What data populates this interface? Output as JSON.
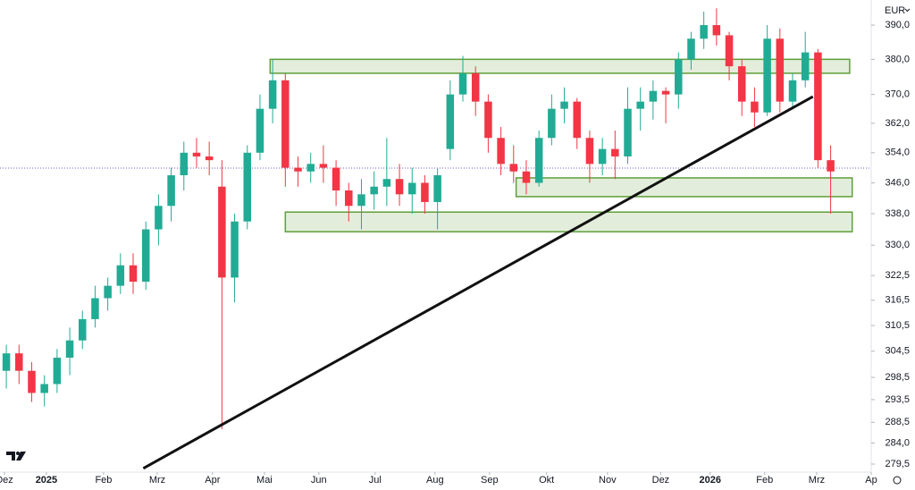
{
  "chart_data": {
    "type": "candlestick",
    "log_scale": true,
    "currency": "EUR",
    "up_color": "#22ab94",
    "down_color": "#f23645",
    "zone_color": "#5e9e3a",
    "trend_color": "#111111",
    "price_line_color": "#7e57c2",
    "ylim": [
      277.8,
      397.5
    ],
    "yticks": [
      {
        "value": 390,
        "label": "390,0"
      },
      {
        "value": 380,
        "label": "380,0"
      },
      {
        "value": 370,
        "label": "370,0"
      },
      {
        "value": 362,
        "label": "362,0"
      },
      {
        "value": 354,
        "label": "354,0"
      },
      {
        "value": 346,
        "label": "346,0"
      },
      {
        "value": 338,
        "label": "338,0"
      },
      {
        "value": 330,
        "label": "330,0"
      },
      {
        "value": 322.5,
        "label": "322,5"
      },
      {
        "value": 316.5,
        "label": "316,5"
      },
      {
        "value": 310.5,
        "label": "310,5"
      },
      {
        "value": 304.5,
        "label": "304,5"
      },
      {
        "value": 298.5,
        "label": "298,5"
      },
      {
        "value": 293.5,
        "label": "293,5"
      },
      {
        "value": 288.5,
        "label": "288,5"
      },
      {
        "value": 284,
        "label": "284,0"
      },
      {
        "value": 279.5,
        "label": "279,5"
      }
    ],
    "xlim": [
      0,
      68.7
    ],
    "xticks": [
      {
        "value": 0.35,
        "label": "Dez"
      },
      {
        "value": 3.66,
        "label": "2025"
      },
      {
        "value": 8.17,
        "label": "Feb"
      },
      {
        "value": 12.4,
        "label": "Mrz"
      },
      {
        "value": 16.76,
        "label": "Apr"
      },
      {
        "value": 20.85,
        "label": "Mai"
      },
      {
        "value": 25.14,
        "label": "Jun"
      },
      {
        "value": 29.58,
        "label": "Jul"
      },
      {
        "value": 34.3,
        "label": "Aug"
      },
      {
        "value": 38.6,
        "label": "Sep"
      },
      {
        "value": 43.1,
        "label": "Okt"
      },
      {
        "value": 47.9,
        "label": "Nov"
      },
      {
        "value": 52.1,
        "label": "Dez"
      },
      {
        "value": 56.0,
        "label": "2026"
      },
      {
        "value": 60.3,
        "label": "Feb"
      },
      {
        "value": 64.4,
        "label": "Mrz"
      },
      {
        "value": 68.7,
        "label": "Ap"
      }
    ],
    "categories": [
      null,
      null,
      null,
      null,
      null,
      null,
      null,
      null,
      null,
      null,
      null,
      null,
      null,
      null,
      null,
      null,
      null,
      null,
      null,
      null,
      null,
      null,
      null,
      null,
      null,
      null,
      null,
      null,
      null,
      null,
      null,
      null,
      null,
      null,
      null,
      null,
      null,
      null,
      null,
      null,
      null,
      null,
      null,
      null,
      null,
      null,
      null,
      null,
      null,
      null,
      null,
      null,
      null,
      null,
      null,
      null,
      null,
      null,
      null,
      null,
      null,
      null,
      null,
      null,
      null,
      null
    ],
    "ohlc": [
      [
        300,
        306,
        296,
        304
      ],
      [
        304,
        306,
        297,
        300
      ],
      [
        300,
        302,
        293,
        295
      ],
      [
        295,
        299,
        292,
        297
      ],
      [
        297,
        305,
        295,
        303
      ],
      [
        303,
        310,
        299,
        307
      ],
      [
        307,
        314,
        305,
        312
      ],
      [
        312,
        320,
        310,
        317
      ],
      [
        317,
        322,
        314,
        320
      ],
      [
        320,
        328,
        318,
        325
      ],
      [
        325,
        328,
        318,
        321
      ],
      [
        321,
        336,
        319,
        334
      ],
      [
        334,
        343,
        330,
        340
      ],
      [
        340,
        350,
        336,
        348
      ],
      [
        348,
        357,
        344,
        354
      ],
      [
        354,
        358,
        350,
        353
      ],
      [
        353,
        357,
        348,
        352
      ],
      [
        345,
        352,
        287,
        322
      ],
      [
        322,
        338,
        316,
        336
      ],
      [
        336,
        356,
        334,
        354
      ],
      [
        354,
        370,
        352,
        366
      ],
      [
        366,
        380,
        362,
        374
      ],
      [
        374,
        376,
        345,
        350
      ],
      [
        350,
        353,
        345,
        349
      ],
      [
        349,
        354,
        346,
        351
      ],
      [
        351,
        356,
        346,
        350
      ],
      [
        350,
        352,
        340,
        344
      ],
      [
        344,
        346,
        336,
        340
      ],
      [
        340,
        347,
        334,
        343
      ],
      [
        343,
        349,
        339,
        345
      ],
      [
        345,
        358,
        340,
        347
      ],
      [
        347,
        351,
        340,
        343
      ],
      [
        343,
        350,
        338,
        346
      ],
      [
        346,
        348,
        338,
        341
      ],
      [
        341,
        350,
        334,
        348
      ],
      [
        355,
        374,
        352,
        370
      ],
      [
        370,
        381,
        368,
        376
      ],
      [
        376,
        378,
        364,
        368
      ],
      [
        368,
        370,
        354,
        358
      ],
      [
        358,
        361,
        348,
        351
      ],
      [
        351,
        356,
        346,
        349
      ],
      [
        349,
        352,
        343,
        346
      ],
      [
        346,
        360,
        345,
        358
      ],
      [
        358,
        370,
        356,
        366
      ],
      [
        366,
        372,
        362,
        368
      ],
      [
        368,
        369,
        355,
        358
      ],
      [
        358,
        360,
        346,
        351
      ],
      [
        351,
        358,
        348,
        355
      ],
      [
        355,
        360,
        347,
        353
      ],
      [
        353,
        372,
        351,
        366
      ],
      [
        366,
        372,
        360,
        368
      ],
      [
        368,
        374,
        363,
        371
      ],
      [
        371,
        372,
        362,
        370
      ],
      [
        370,
        382,
        366,
        380
      ],
      [
        380,
        388,
        377,
        386
      ],
      [
        386,
        394,
        383,
        390
      ],
      [
        390,
        395,
        384,
        387
      ],
      [
        387,
        388,
        374,
        378
      ],
      [
        378,
        380,
        364,
        368
      ],
      [
        368,
        372,
        361,
        365
      ],
      [
        365,
        390,
        364,
        386
      ],
      [
        386,
        389,
        365,
        368
      ],
      [
        368,
        376,
        366,
        374
      ],
      [
        374,
        388,
        372,
        382
      ],
      [
        382,
        383,
        350,
        352
      ],
      [
        352,
        356,
        338,
        349
      ]
    ],
    "zones": [
      {
        "x": [
          21.3,
          67.0
        ],
        "y": [
          376.0,
          380.0
        ]
      },
      {
        "x": [
          40.7,
          67.2
        ],
        "y": [
          342.4,
          347.3
        ]
      },
      {
        "x": [
          22.5,
          67.2
        ],
        "y": [
          333.4,
          338.4
        ]
      }
    ],
    "trendline": {
      "x": [
        11.3,
        64.1
      ],
      "y": [
        278.6,
        369.4
      ]
    },
    "price_line": 349.9
  }
}
